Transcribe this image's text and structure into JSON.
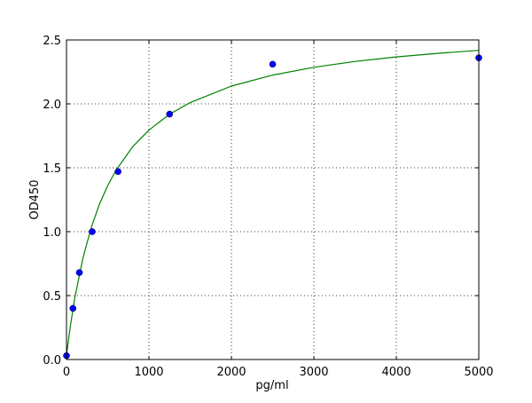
{
  "chart_data": {
    "type": "scatter",
    "title": "",
    "xlabel": "pg/ml",
    "ylabel": "OD450",
    "xlim": [
      0,
      5000
    ],
    "ylim": [
      0,
      2.5
    ],
    "grid": true,
    "xticks": [
      "0",
      "1000",
      "2000",
      "3000",
      "4000",
      "5000"
    ],
    "yticks": [
      "0.0",
      "0.5",
      "1.0",
      "1.5",
      "2.0",
      "2.5"
    ],
    "points": {
      "x": [
        0,
        78,
        156,
        312,
        625,
        1250,
        2500,
        5000
      ],
      "y": [
        0.03,
        0.4,
        0.68,
        1.0,
        1.47,
        1.92,
        2.31,
        2.36
      ],
      "color": "#0000ff"
    },
    "fit_curve": {
      "x": [
        0,
        25,
        50,
        100,
        200,
        300,
        400,
        500,
        600,
        800,
        1000,
        1250,
        1500,
        2000,
        2500,
        3000,
        3500,
        4000,
        4500,
        5000
      ],
      "y": [
        0.03,
        0.159,
        0.275,
        0.479,
        0.796,
        1.033,
        1.216,
        1.361,
        1.48,
        1.663,
        1.795,
        1.919,
        2.01,
        2.139,
        2.225,
        2.286,
        2.332,
        2.367,
        2.395,
        2.419
      ],
      "color": "#008000"
    }
  }
}
